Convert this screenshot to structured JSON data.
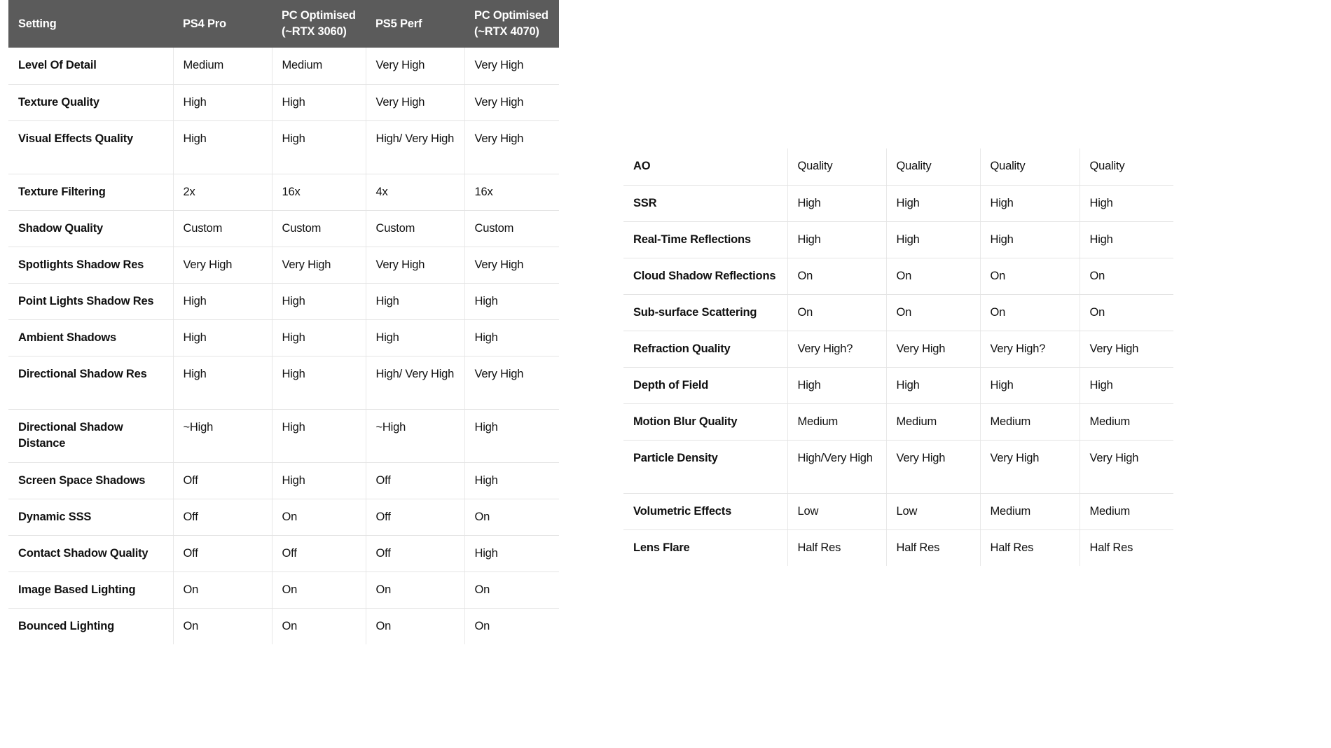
{
  "left_table": {
    "headers": [
      "Setting",
      "PS4 Pro",
      "PC Optimised (~RTX 3060)",
      "PS5 Perf",
      "PC Optimised (~RTX 4070)"
    ],
    "rows": [
      [
        "Level Of Detail",
        "Medium",
        "Medium",
        "Very High",
        "Very High"
      ],
      [
        "Texture Quality",
        "High",
        "High",
        "Very High",
        "Very High"
      ],
      [
        "Visual Effects Quality",
        "High",
        "High",
        "High/ Very High",
        "Very High"
      ],
      [
        "Texture Filtering",
        "2x",
        "16x",
        "4x",
        "16x"
      ],
      [
        "Shadow Quality",
        "Custom",
        "Custom",
        "Custom",
        "Custom"
      ],
      [
        "Spotlights Shadow Res",
        "Very High",
        "Very High",
        "Very High",
        "Very High"
      ],
      [
        "Point Lights Shadow Res",
        "High",
        "High",
        "High",
        "High"
      ],
      [
        "Ambient Shadows",
        "High",
        "High",
        "High",
        "High"
      ],
      [
        "Directional Shadow Res",
        "High",
        "High",
        "High/ Very High",
        "Very High"
      ],
      [
        "Directional Shadow Distance",
        "~High",
        "High",
        "~High",
        "High"
      ],
      [
        "Screen Space Shadows",
        "Off",
        "High",
        "Off",
        "High"
      ],
      [
        "Dynamic SSS",
        "Off",
        "On",
        "Off",
        "On"
      ],
      [
        "Contact Shadow Quality",
        "Off",
        "Off",
        "Off",
        "High"
      ],
      [
        "Image Based Lighting",
        "On",
        "On",
        "On",
        "On"
      ],
      [
        "Bounced Lighting",
        "On",
        "On",
        "On",
        "On"
      ]
    ]
  },
  "right_table": {
    "rows": [
      [
        "AO",
        "Quality",
        "Quality",
        "Quality",
        "Quality"
      ],
      [
        "SSR",
        "High",
        "High",
        "High",
        "High"
      ],
      [
        "Real-Time Reflections",
        "High",
        "High",
        "High",
        "High"
      ],
      [
        "Cloud Shadow Reflections",
        "On",
        "On",
        "On",
        "On"
      ],
      [
        "Sub-surface Scattering",
        "On",
        "On",
        "On",
        "On"
      ],
      [
        "Refraction Quality",
        "Very High?",
        "Very High",
        "Very High?",
        "Very High"
      ],
      [
        "Depth of Field",
        "High",
        "High",
        "High",
        "High"
      ],
      [
        "Motion Blur Quality",
        "Medium",
        "Medium",
        "Medium",
        "Medium"
      ],
      [
        "Particle Density",
        "High/Very High",
        "Very High",
        "Very High",
        "Very High"
      ],
      [
        "Volumetric Effects",
        "Low",
        "Low",
        "Medium",
        "Medium"
      ],
      [
        "Lens Flare",
        "Half Res",
        "Half Res",
        "Half Res",
        "Half Res"
      ]
    ]
  },
  "colors": {
    "header_bg": "#5b5b5b",
    "header_text": "#ffffff",
    "row_border": "#e4e4e4"
  }
}
